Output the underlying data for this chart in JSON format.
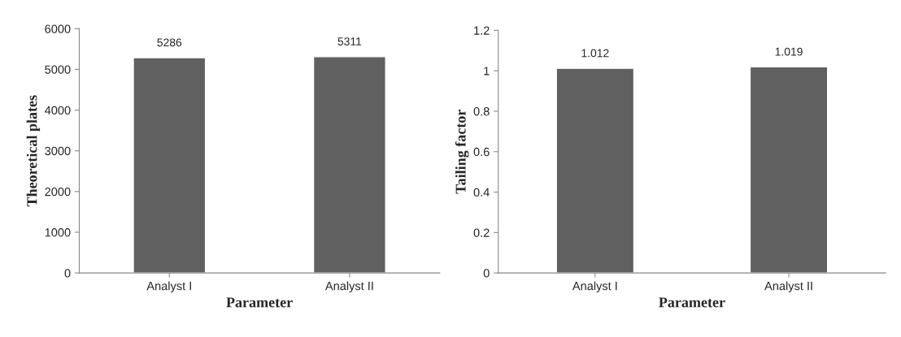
{
  "chart_data": [
    {
      "type": "bar",
      "categories": [
        "Analyst I",
        "Analyst II"
      ],
      "values": [
        5286,
        5311
      ],
      "color": "#606060",
      "xlabel": "Parameter",
      "ylabel": "Theoretical plates",
      "ylim": [
        0,
        6000
      ],
      "yticks": [
        0,
        1000,
        2000,
        3000,
        4000,
        5000,
        6000
      ],
      "data_labels": true,
      "grid": false,
      "legend": false
    },
    {
      "type": "bar",
      "categories": [
        "Analyst I",
        "Analyst II"
      ],
      "values": [
        1.012,
        1.019
      ],
      "color": "#606060",
      "xlabel": "Parameter",
      "ylabel": "Tailing factor",
      "ylim": [
        0,
        1.2
      ],
      "yticks": [
        0,
        0.2,
        0.4,
        0.6,
        0.8,
        1,
        1.2
      ],
      "data_labels": true,
      "grid": false,
      "legend": false
    }
  ]
}
